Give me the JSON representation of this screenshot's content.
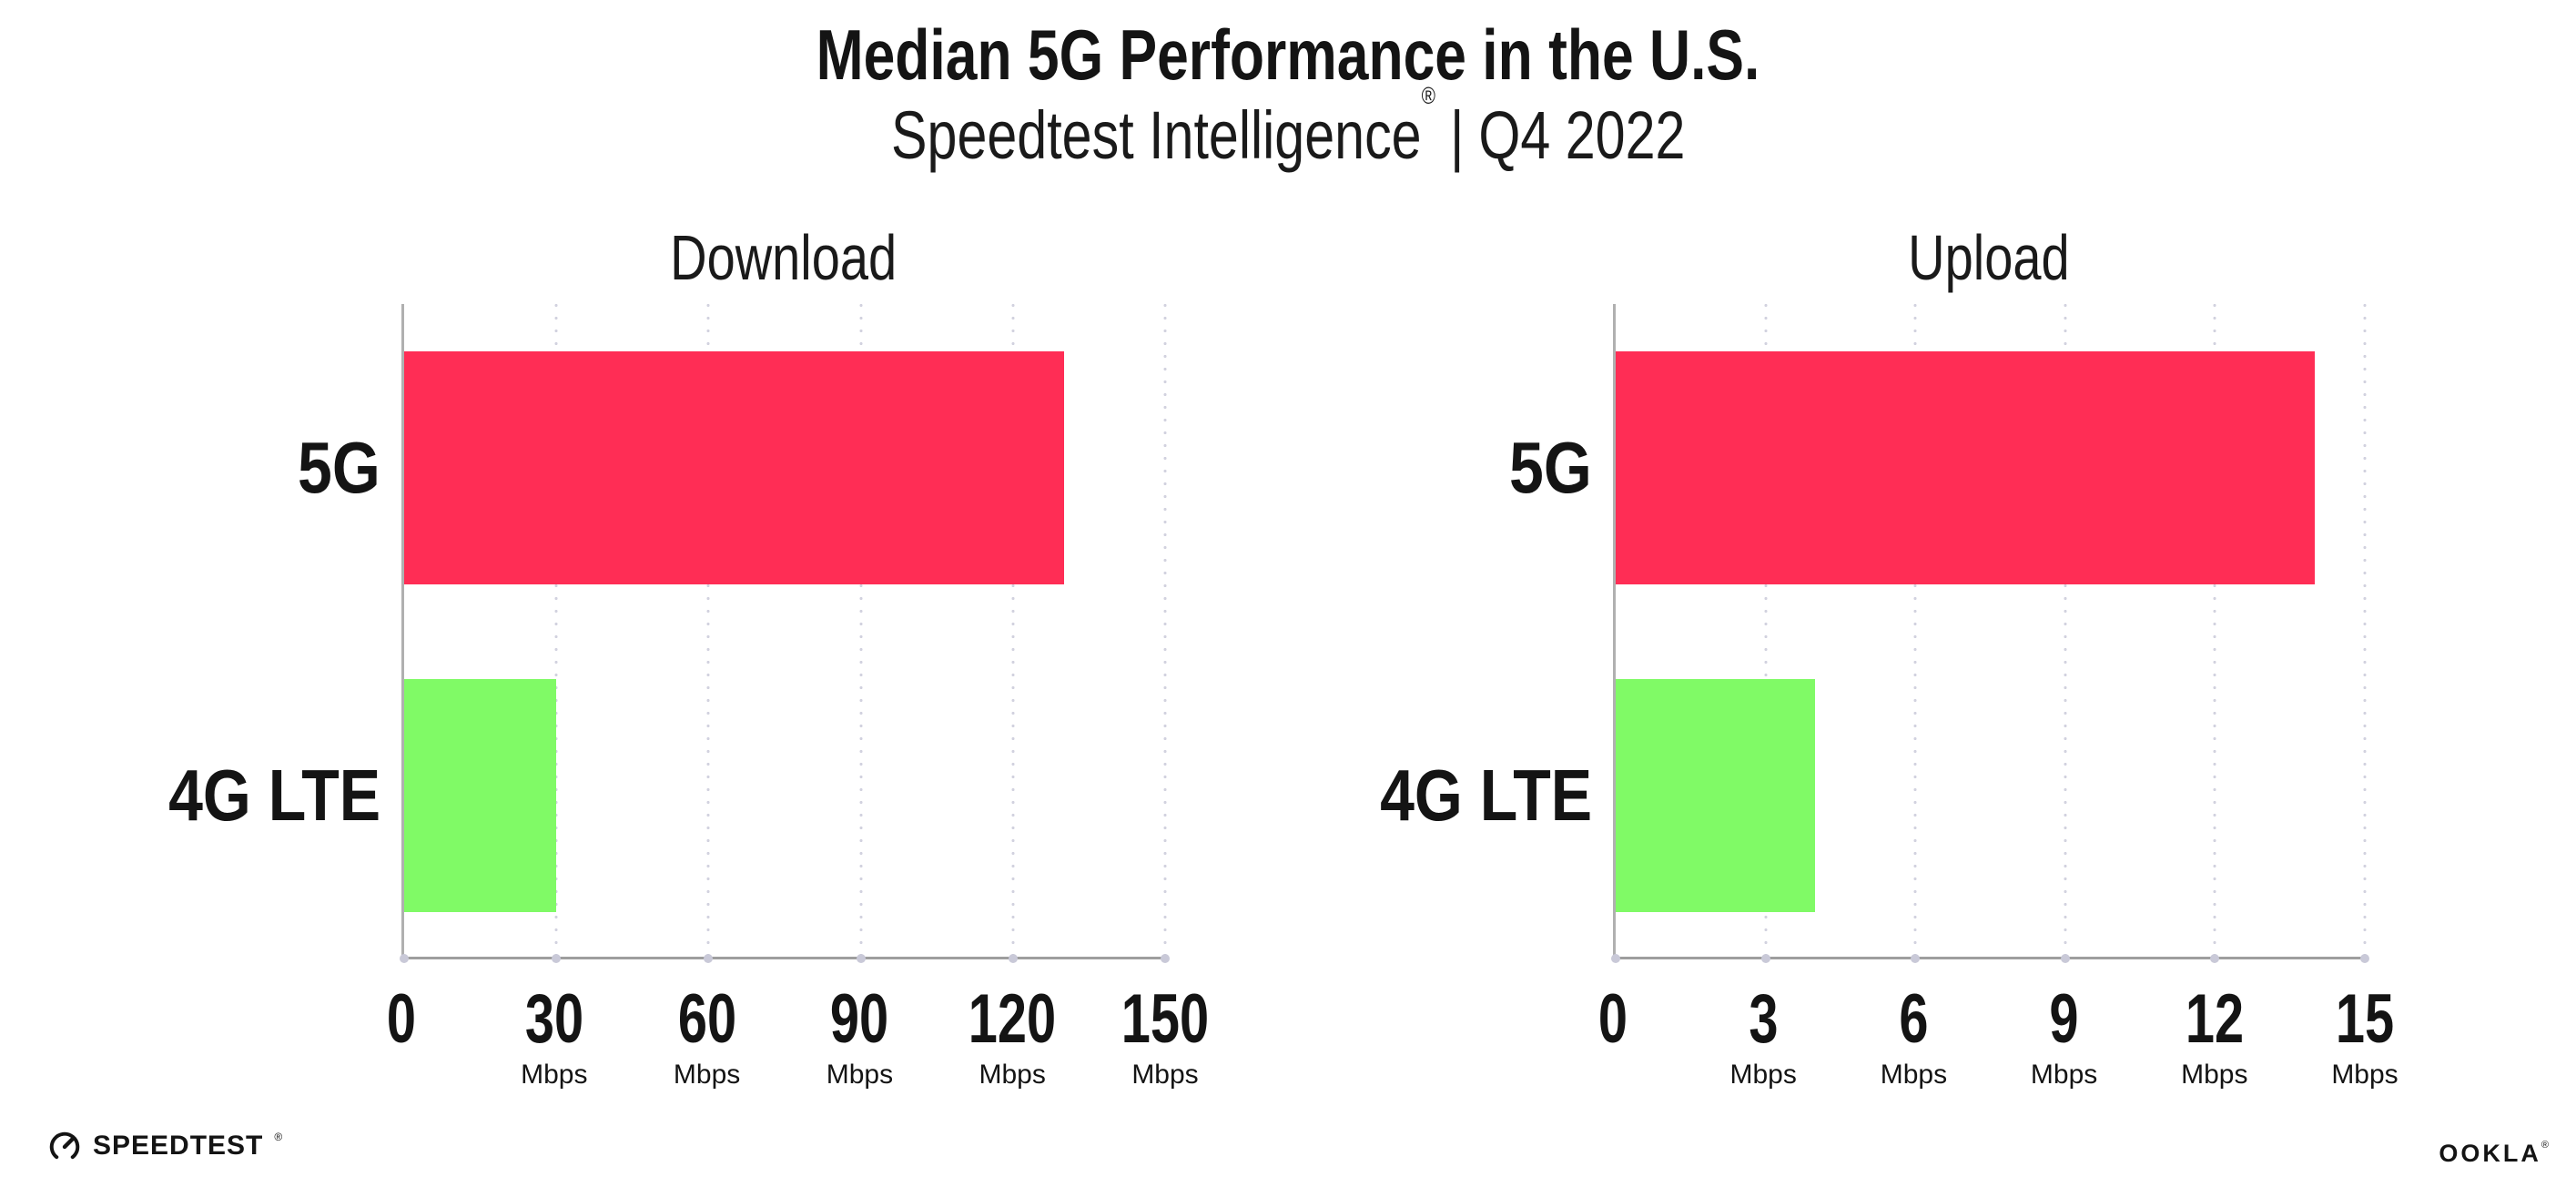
{
  "header": {
    "title": "Median 5G Performance in the U.S.",
    "subtitle_brand": "Speedtest Intelligence",
    "subtitle_mark": "®",
    "subtitle_divider": "|",
    "subtitle_period": "Q4 2022"
  },
  "chart_data": [
    {
      "type": "bar",
      "orientation": "horizontal",
      "title": "Download",
      "categories": [
        "5G",
        "4G LTE"
      ],
      "values": [
        130,
        30
      ],
      "unit": "Mbps",
      "xlim": [
        0,
        150
      ],
      "xticks": [
        0,
        30,
        60,
        90,
        120,
        150
      ],
      "grid": "dotted-vertical-gridlines",
      "bar_colors": [
        "#FF2D55",
        "#80FA66"
      ]
    },
    {
      "type": "bar",
      "orientation": "horizontal",
      "title": "Upload",
      "categories": [
        "5G",
        "4G LTE"
      ],
      "values": [
        14,
        4
      ],
      "unit": "Mbps",
      "xlim": [
        0,
        15
      ],
      "xticks": [
        0,
        3,
        6,
        9,
        12,
        15
      ],
      "grid": "dotted-vertical-gridlines",
      "bar_colors": [
        "#FF2D55",
        "#80FA66"
      ]
    }
  ],
  "colors": {
    "bar_5g": "#FF2D55",
    "bar_4g_lte": "#80FA66",
    "axis": "#A5A5A5",
    "grid_dot": "#D2D2DF",
    "text": "#141414"
  },
  "footer": {
    "speedtest_label": "SPEEDTEST",
    "speedtest_mark": "®",
    "ookla_label": "OOKLA",
    "ookla_mark": "®"
  }
}
